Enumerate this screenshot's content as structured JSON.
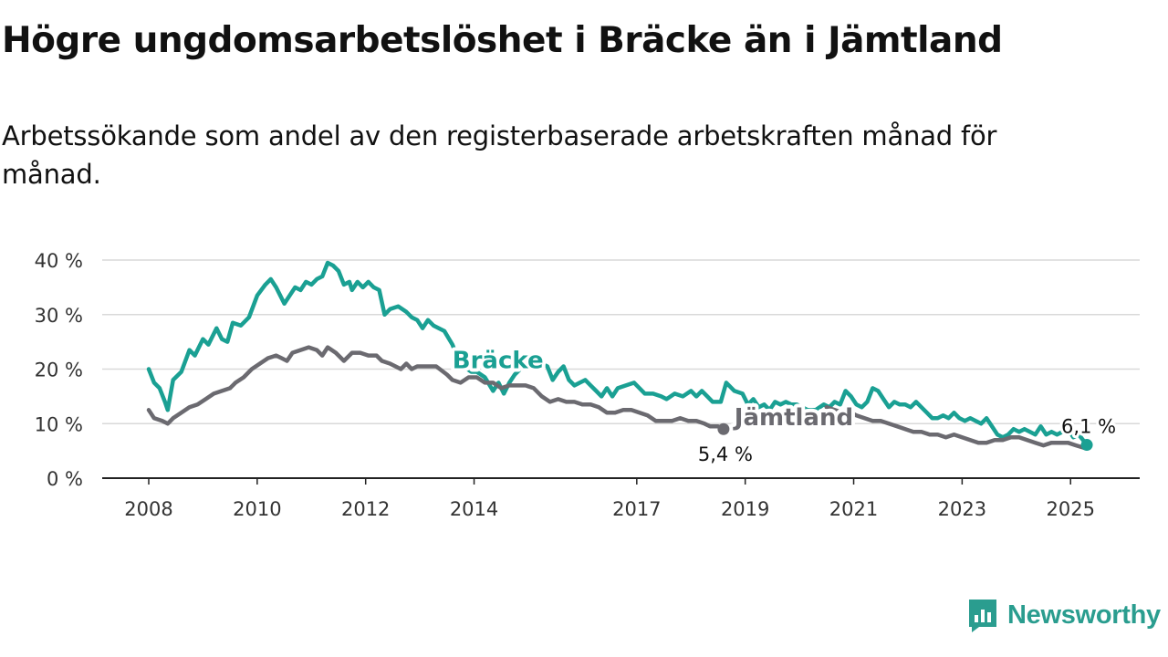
{
  "title": "Högre ungdomsarbetslöshet i Bräcke än i Jämtland",
  "subtitle": "Arbetssökande som andel av den registerbaserade arbetskraften månad för månad.",
  "brand": {
    "name": "Newsworthy",
    "logo_icon": "chart-bubble-icon",
    "color": "#2a9d8f"
  },
  "chart_data": {
    "type": "line",
    "x_tick_labels": [
      "2008",
      "2010",
      "2012",
      "2014",
      "2017",
      "2019",
      "2021",
      "2023",
      "2025"
    ],
    "x_ticks": [
      2008,
      2010,
      2012,
      2014,
      2017,
      2019,
      2021,
      2023,
      2025
    ],
    "xlim": [
      2008,
      2025.4
    ],
    "y_tick_labels": [
      "0 %",
      "10 %",
      "20 %",
      "30 %",
      "40 %"
    ],
    "y_ticks": [
      0,
      10,
      20,
      30,
      40
    ],
    "ylim": [
      0,
      40
    ],
    "grid": true,
    "legend": "inline labels on lines",
    "series": [
      {
        "name": "Bräcke",
        "color": "#1aa093",
        "end_label": "6,1 %",
        "points": [
          [
            2008.0,
            20.0
          ],
          [
            2008.1,
            17.5
          ],
          [
            2008.2,
            16.5
          ],
          [
            2008.3,
            14.0
          ],
          [
            2008.35,
            12.5
          ],
          [
            2008.45,
            18.0
          ],
          [
            2008.6,
            19.5
          ],
          [
            2008.75,
            23.5
          ],
          [
            2008.85,
            22.5
          ],
          [
            2009.0,
            25.5
          ],
          [
            2009.1,
            24.5
          ],
          [
            2009.25,
            27.5
          ],
          [
            2009.35,
            25.5
          ],
          [
            2009.45,
            25.0
          ],
          [
            2009.55,
            28.5
          ],
          [
            2009.7,
            28.0
          ],
          [
            2009.85,
            29.5
          ],
          [
            2010.0,
            33.5
          ],
          [
            2010.15,
            35.5
          ],
          [
            2010.25,
            36.5
          ],
          [
            2010.35,
            35.0
          ],
          [
            2010.5,
            32.0
          ],
          [
            2010.6,
            33.5
          ],
          [
            2010.7,
            35.0
          ],
          [
            2010.8,
            34.5
          ],
          [
            2010.9,
            36.0
          ],
          [
            2011.0,
            35.5
          ],
          [
            2011.1,
            36.5
          ],
          [
            2011.2,
            37.0
          ],
          [
            2011.3,
            39.5
          ],
          [
            2011.4,
            39.0
          ],
          [
            2011.5,
            38.0
          ],
          [
            2011.6,
            35.5
          ],
          [
            2011.7,
            36.0
          ],
          [
            2011.75,
            34.5
          ],
          [
            2011.85,
            36.0
          ],
          [
            2011.95,
            35.0
          ],
          [
            2012.05,
            36.0
          ],
          [
            2012.15,
            35.0
          ],
          [
            2012.25,
            34.5
          ],
          [
            2012.35,
            30.0
          ],
          [
            2012.45,
            31.0
          ],
          [
            2012.6,
            31.5
          ],
          [
            2012.75,
            30.5
          ],
          [
            2012.85,
            29.5
          ],
          [
            2012.95,
            29.0
          ],
          [
            2013.05,
            27.5
          ],
          [
            2013.15,
            29.0
          ],
          [
            2013.25,
            28.0
          ],
          [
            2013.35,
            27.5
          ],
          [
            2013.45,
            27.0
          ],
          [
            2013.6,
            24.5
          ],
          [
            2013.7,
            22.0
          ],
          [
            2013.8,
            20.5
          ],
          [
            2013.95,
            19.5
          ],
          [
            2014.05,
            19.5
          ],
          [
            2014.2,
            18.5
          ],
          [
            2014.35,
            16.0
          ],
          [
            2014.45,
            17.5
          ],
          [
            2014.55,
            15.5
          ],
          [
            2014.65,
            17.5
          ],
          [
            2014.75,
            19.0
          ],
          [
            2014.85,
            20.0
          ],
          [
            2014.95,
            21.0
          ],
          [
            2015.05,
            21.5
          ],
          [
            2015.15,
            22.0
          ],
          [
            2015.25,
            21.0
          ],
          [
            2015.35,
            20.5
          ],
          [
            2015.45,
            18.0
          ],
          [
            2015.55,
            19.5
          ],
          [
            2015.65,
            20.5
          ],
          [
            2015.75,
            18.0
          ],
          [
            2015.85,
            17.0
          ],
          [
            2015.95,
            17.5
          ],
          [
            2016.05,
            18.0
          ],
          [
            2016.15,
            17.0
          ],
          [
            2016.25,
            16.0
          ],
          [
            2016.35,
            15.0
          ],
          [
            2016.45,
            16.5
          ],
          [
            2016.55,
            15.0
          ],
          [
            2016.65,
            16.5
          ],
          [
            2016.8,
            17.0
          ],
          [
            2016.95,
            17.5
          ],
          [
            2017.05,
            16.5
          ],
          [
            2017.15,
            15.5
          ],
          [
            2017.3,
            15.5
          ],
          [
            2017.45,
            15.0
          ],
          [
            2017.55,
            14.5
          ],
          [
            2017.7,
            15.5
          ],
          [
            2017.85,
            15.0
          ],
          [
            2018.0,
            16.0
          ],
          [
            2018.1,
            15.0
          ],
          [
            2018.2,
            16.0
          ],
          [
            2018.3,
            15.0
          ],
          [
            2018.4,
            14.0
          ],
          [
            2018.55,
            14.0
          ],
          [
            2018.65,
            17.5
          ],
          [
            2018.8,
            16.0
          ],
          [
            2018.95,
            15.5
          ],
          [
            2019.05,
            13.5
          ],
          [
            2019.15,
            14.5
          ],
          [
            2019.25,
            13.0
          ],
          [
            2019.35,
            13.5
          ],
          [
            2019.45,
            12.5
          ],
          [
            2019.55,
            14.0
          ],
          [
            2019.65,
            13.5
          ],
          [
            2019.75,
            14.0
          ],
          [
            2019.85,
            13.5
          ],
          [
            2019.95,
            13.5
          ],
          [
            2020.05,
            13.0
          ],
          [
            2020.15,
            12.5
          ],
          [
            2020.3,
            12.5
          ],
          [
            2020.45,
            13.5
          ],
          [
            2020.55,
            13.0
          ],
          [
            2020.65,
            14.0
          ],
          [
            2020.75,
            13.5
          ],
          [
            2020.85,
            16.0
          ],
          [
            2020.95,
            15.0
          ],
          [
            2021.05,
            13.5
          ],
          [
            2021.15,
            13.0
          ],
          [
            2021.25,
            14.0
          ],
          [
            2021.35,
            16.5
          ],
          [
            2021.45,
            16.0
          ],
          [
            2021.55,
            14.5
          ],
          [
            2021.65,
            13.0
          ],
          [
            2021.75,
            14.0
          ],
          [
            2021.85,
            13.5
          ],
          [
            2021.95,
            13.5
          ],
          [
            2022.05,
            13.0
          ],
          [
            2022.15,
            14.0
          ],
          [
            2022.25,
            13.0
          ],
          [
            2022.35,
            12.0
          ],
          [
            2022.45,
            11.0
          ],
          [
            2022.55,
            11.0
          ],
          [
            2022.65,
            11.5
          ],
          [
            2022.75,
            11.0
          ],
          [
            2022.85,
            12.0
          ],
          [
            2022.95,
            11.0
          ],
          [
            2023.05,
            10.5
          ],
          [
            2023.15,
            11.0
          ],
          [
            2023.25,
            10.5
          ],
          [
            2023.35,
            10.0
          ],
          [
            2023.45,
            11.0
          ],
          [
            2023.55,
            9.5
          ],
          [
            2023.65,
            8.0
          ],
          [
            2023.75,
            7.5
          ],
          [
            2023.85,
            8.0
          ],
          [
            2023.95,
            9.0
          ],
          [
            2024.05,
            8.5
          ],
          [
            2024.15,
            9.0
          ],
          [
            2024.25,
            8.5
          ],
          [
            2024.35,
            8.0
          ],
          [
            2024.45,
            9.5
          ],
          [
            2024.55,
            8.0
          ],
          [
            2024.65,
            8.5
          ],
          [
            2024.75,
            8.0
          ],
          [
            2024.85,
            8.5
          ],
          [
            2024.95,
            9.0
          ],
          [
            2025.05,
            7.5
          ],
          [
            2025.15,
            8.0
          ],
          [
            2025.3,
            6.1
          ]
        ]
      },
      {
        "name": "Jämtland",
        "color": "#6b6a70",
        "end_label": "5,4 %",
        "points": [
          [
            2008.0,
            12.5
          ],
          [
            2008.1,
            11.0
          ],
          [
            2008.25,
            10.5
          ],
          [
            2008.35,
            10.0
          ],
          [
            2008.45,
            11.0
          ],
          [
            2008.6,
            12.0
          ],
          [
            2008.75,
            13.0
          ],
          [
            2008.9,
            13.5
          ],
          [
            2009.05,
            14.5
          ],
          [
            2009.2,
            15.5
          ],
          [
            2009.35,
            16.0
          ],
          [
            2009.5,
            16.5
          ],
          [
            2009.6,
            17.5
          ],
          [
            2009.75,
            18.5
          ],
          [
            2009.9,
            20.0
          ],
          [
            2010.05,
            21.0
          ],
          [
            2010.2,
            22.0
          ],
          [
            2010.35,
            22.5
          ],
          [
            2010.45,
            22.0
          ],
          [
            2010.55,
            21.5
          ],
          [
            2010.65,
            23.0
          ],
          [
            2010.8,
            23.5
          ],
          [
            2010.95,
            24.0
          ],
          [
            2011.1,
            23.5
          ],
          [
            2011.2,
            22.5
          ],
          [
            2011.3,
            24.0
          ],
          [
            2011.45,
            23.0
          ],
          [
            2011.6,
            21.5
          ],
          [
            2011.75,
            23.0
          ],
          [
            2011.9,
            23.0
          ],
          [
            2012.05,
            22.5
          ],
          [
            2012.2,
            22.5
          ],
          [
            2012.3,
            21.5
          ],
          [
            2012.45,
            21.0
          ],
          [
            2012.55,
            20.5
          ],
          [
            2012.65,
            20.0
          ],
          [
            2012.75,
            21.0
          ],
          [
            2012.85,
            20.0
          ],
          [
            2012.95,
            20.5
          ],
          [
            2013.1,
            20.5
          ],
          [
            2013.3,
            20.5
          ],
          [
            2013.5,
            19.0
          ],
          [
            2013.6,
            18.0
          ],
          [
            2013.75,
            17.5
          ],
          [
            2013.9,
            18.5
          ],
          [
            2014.05,
            18.5
          ],
          [
            2014.2,
            17.5
          ],
          [
            2014.35,
            17.5
          ],
          [
            2014.5,
            16.5
          ],
          [
            2014.65,
            17.0
          ],
          [
            2014.8,
            17.0
          ],
          [
            2014.95,
            17.0
          ],
          [
            2015.1,
            16.5
          ],
          [
            2015.25,
            15.0
          ],
          [
            2015.4,
            14.0
          ],
          [
            2015.55,
            14.5
          ],
          [
            2015.7,
            14.0
          ],
          [
            2015.85,
            14.0
          ],
          [
            2016.0,
            13.5
          ],
          [
            2016.15,
            13.5
          ],
          [
            2016.3,
            13.0
          ],
          [
            2016.45,
            12.0
          ],
          [
            2016.6,
            12.0
          ],
          [
            2016.75,
            12.5
          ],
          [
            2016.9,
            12.5
          ],
          [
            2017.05,
            12.0
          ],
          [
            2017.2,
            11.5
          ],
          [
            2017.35,
            10.5
          ],
          [
            2017.5,
            10.5
          ],
          [
            2017.65,
            10.5
          ],
          [
            2017.8,
            11.0
          ],
          [
            2017.95,
            10.5
          ],
          [
            2018.1,
            10.5
          ],
          [
            2018.25,
            10.0
          ],
          [
            2018.35,
            9.5
          ],
          [
            2018.5,
            9.5
          ],
          [
            2018.6,
            9.0
          ]
        ]
      },
      {
        "name": "Jämtland",
        "color": "#6b6a70",
        "points": [
          [
            2020.5,
            13.0
          ],
          [
            2020.65,
            12.5
          ],
          [
            2020.8,
            12.0
          ],
          [
            2020.95,
            12.0
          ],
          [
            2021.05,
            11.5
          ],
          [
            2021.2,
            11.0
          ],
          [
            2021.35,
            10.5
          ],
          [
            2021.5,
            10.5
          ],
          [
            2021.65,
            10.0
          ],
          [
            2021.8,
            9.5
          ],
          [
            2021.95,
            9.0
          ],
          [
            2022.1,
            8.5
          ],
          [
            2022.25,
            8.5
          ],
          [
            2022.4,
            8.0
          ],
          [
            2022.55,
            8.0
          ],
          [
            2022.7,
            7.5
          ],
          [
            2022.85,
            8.0
          ],
          [
            2023.0,
            7.5
          ],
          [
            2023.15,
            7.0
          ],
          [
            2023.3,
            6.5
          ],
          [
            2023.45,
            6.5
          ],
          [
            2023.6,
            7.0
          ],
          [
            2023.75,
            7.0
          ],
          [
            2023.9,
            7.5
          ],
          [
            2024.05,
            7.5
          ],
          [
            2024.2,
            7.0
          ],
          [
            2024.35,
            6.5
          ],
          [
            2024.5,
            6.0
          ],
          [
            2024.65,
            6.5
          ],
          [
            2024.8,
            6.5
          ],
          [
            2024.95,
            6.5
          ],
          [
            2025.1,
            6.0
          ],
          [
            2025.3,
            5.4
          ]
        ]
      }
    ],
    "line_labels": [
      {
        "text": "Bräcke",
        "x": 2013.6,
        "y": 20.2,
        "color": "#1aa093"
      },
      {
        "text": "Jämtland",
        "x": 2018.8,
        "y": 9.7,
        "color": "#6b6a70"
      }
    ]
  }
}
